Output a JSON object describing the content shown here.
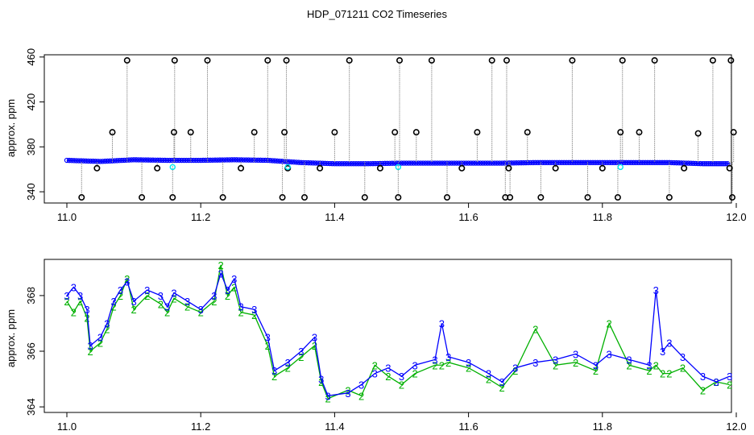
{
  "title": "HDP_071211  CO2 Timeseries",
  "colors": {
    "frame": "#000000",
    "outlier_marker": "#000000",
    "spike_line": "#8c8c8c",
    "series_blue": "#0000ff",
    "series_green": "#00b000",
    "series_cyan": "#00e5ee"
  },
  "chart_data": [
    {
      "type": "scatter",
      "title": "",
      "xlabel": "",
      "ylabel": "approx. ppm",
      "xlim": [
        11.0,
        12.0
      ],
      "ylim": [
        330,
        462
      ],
      "x_ticks": [
        "11.0",
        "11.2",
        "11.4",
        "11.6",
        "11.8",
        "12.0"
      ],
      "y_ticks": [
        "340",
        "380",
        "420",
        "460"
      ],
      "grid": false,
      "series": [
        {
          "color": "blue",
          "marker": "circle",
          "x": [
            11.0,
            11.05,
            11.1,
            11.15,
            11.2,
            11.25,
            11.3,
            11.35,
            11.4,
            11.45,
            11.5,
            11.55,
            11.6,
            11.65,
            11.7,
            11.75,
            11.8,
            11.85,
            11.9,
            11.95,
            11.99
          ],
          "y": [
            368,
            367,
            368.5,
            368,
            368,
            368.5,
            368,
            366,
            365,
            365,
            365.5,
            365.5,
            365.5,
            365.5,
            366,
            366,
            366,
            366,
            366,
            365,
            365
          ]
        },
        {
          "color": "cyan",
          "marker": "circle",
          "x": [
            11.158,
            11.33,
            11.495,
            11.827
          ],
          "y": [
            362,
            362,
            362,
            362
          ]
        },
        {
          "color": "black",
          "marker": "open-circle",
          "x": [
            11.022,
            11.045,
            11.068,
            11.09,
            11.112,
            11.135,
            11.158,
            11.16,
            11.161,
            11.185,
            11.21,
            11.233,
            11.26,
            11.28,
            11.3,
            11.322,
            11.325,
            11.328,
            11.33,
            11.355,
            11.378,
            11.4,
            11.422,
            11.445,
            11.468,
            11.49,
            11.495,
            11.497,
            11.522,
            11.545,
            11.568,
            11.59,
            11.613,
            11.635,
            11.655,
            11.657,
            11.66,
            11.662,
            11.688,
            11.708,
            11.73,
            11.755,
            11.778,
            11.8,
            11.823,
            11.827,
            11.83,
            11.855,
            11.878,
            11.9,
            11.922,
            11.943,
            11.965,
            11.99,
            11.992,
            11.994,
            11.996
          ],
          "y": [
            335,
            361,
            393,
            457,
            335,
            361,
            335,
            393,
            457,
            393,
            457,
            335,
            361,
            393,
            457,
            335,
            393,
            457,
            361,
            335,
            361,
            393,
            457,
            335,
            361,
            393,
            335,
            457,
            393,
            457,
            335,
            361,
            393,
            457,
            335,
            457,
            361,
            335,
            393,
            335,
            361,
            457,
            335,
            361,
            335,
            393,
            457,
            393,
            457,
            335,
            361,
            392,
            457,
            361,
            457,
            335,
            393
          ]
        }
      ]
    },
    {
      "type": "line",
      "title": "",
      "xlabel": "",
      "ylabel": "approx. ppm",
      "xlim": [
        11.0,
        12.0
      ],
      "ylim": [
        363.8,
        369.3
      ],
      "x_ticks": [
        "11.0",
        "11.2",
        "11.4",
        "11.6",
        "11.8",
        "12.0"
      ],
      "y_ticks": [
        "364",
        "366",
        "368"
      ],
      "grid": false,
      "series": [
        {
          "color": "blue",
          "point_label": "3",
          "x": [
            11.0,
            11.01,
            11.02,
            11.03,
            11.035,
            11.05,
            11.06,
            11.07,
            11.08,
            11.09,
            11.1,
            11.12,
            11.14,
            11.15,
            11.16,
            11.18,
            11.2,
            11.22,
            11.23,
            11.24,
            11.25,
            11.26,
            11.28,
            11.3,
            11.31,
            11.33,
            11.35,
            11.37,
            11.38,
            11.39,
            11.42,
            11.44,
            11.46,
            11.48,
            11.5,
            11.52,
            11.55,
            11.56,
            11.57,
            11.6,
            11.63,
            11.65,
            11.67,
            11.7,
            11.73,
            11.76,
            11.79,
            11.81,
            11.84,
            11.87,
            11.88,
            11.89,
            11.9,
            11.92,
            11.95,
            11.97,
            11.99
          ],
          "y": [
            368,
            368.3,
            368,
            367.5,
            366.2,
            366.5,
            367,
            367.8,
            368.2,
            368.5,
            367.8,
            368.2,
            368,
            367.6,
            368.1,
            367.8,
            367.5,
            368,
            368.8,
            368.2,
            368.6,
            367.6,
            367.5,
            366.5,
            365.3,
            365.6,
            366,
            366.5,
            365,
            364.4,
            364.5,
            364.8,
            365.2,
            365.4,
            365.1,
            365.5,
            365.7,
            367,
            365.8,
            365.6,
            365.2,
            364.9,
            365.4,
            365.6,
            365.7,
            365.9,
            365.5,
            365.9,
            365.7,
            365.5,
            368.2,
            366,
            366.3,
            365.8,
            365.1,
            364.9,
            365.1
          ]
        },
        {
          "color": "green",
          "point_label": "2",
          "x": [
            11.0,
            11.01,
            11.02,
            11.03,
            11.035,
            11.05,
            11.06,
            11.07,
            11.08,
            11.09,
            11.1,
            11.12,
            11.14,
            11.15,
            11.16,
            11.18,
            11.2,
            11.22,
            11.23,
            11.24,
            11.25,
            11.26,
            11.28,
            11.3,
            11.31,
            11.33,
            11.35,
            11.37,
            11.38,
            11.39,
            11.42,
            11.44,
            11.46,
            11.48,
            11.5,
            11.52,
            11.55,
            11.56,
            11.57,
            11.6,
            11.63,
            11.65,
            11.67,
            11.7,
            11.73,
            11.76,
            11.79,
            11.81,
            11.84,
            11.87,
            11.88,
            11.89,
            11.9,
            11.92,
            11.95,
            11.97,
            11.99
          ],
          "y": [
            367.8,
            367.4,
            367.8,
            367.2,
            366,
            366.3,
            366.8,
            367.6,
            368,
            368.6,
            367.5,
            368,
            367.7,
            367.4,
            367.9,
            367.6,
            367.4,
            367.8,
            369.1,
            368,
            368.3,
            367.4,
            367.3,
            366.2,
            365.1,
            365.4,
            365.8,
            366.2,
            364.9,
            364.3,
            364.6,
            364.4,
            365.5,
            365.1,
            364.8,
            365.2,
            365.5,
            365.5,
            365.6,
            365.4,
            365,
            364.7,
            365.3,
            366.8,
            365.5,
            365.6,
            365.3,
            367,
            365.5,
            365.3,
            365.5,
            365.2,
            365.2,
            365.4,
            364.6,
            364.9,
            364.8
          ]
        }
      ]
    }
  ]
}
